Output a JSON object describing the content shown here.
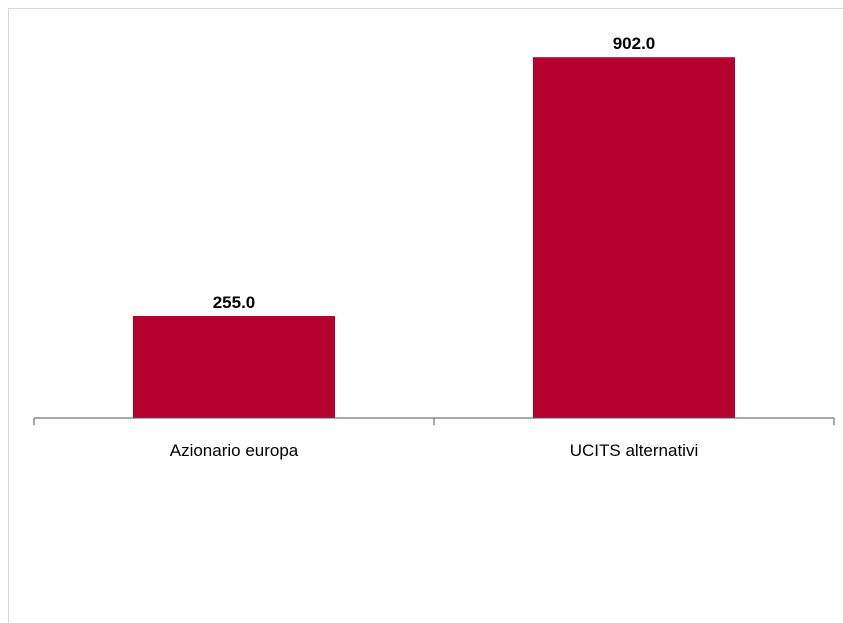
{
  "chart_data": {
    "type": "bar",
    "categories": [
      "Azionario europa",
      "UCITS alternativi"
    ],
    "values": [
      255.0,
      902.0
    ],
    "value_labels": [
      "255.0",
      "902.0"
    ],
    "title": "",
    "xlabel": "",
    "ylabel": "",
    "ylim": [
      0,
      1000
    ],
    "grid": false,
    "legend": "none",
    "bar_color": "#b5002f"
  }
}
